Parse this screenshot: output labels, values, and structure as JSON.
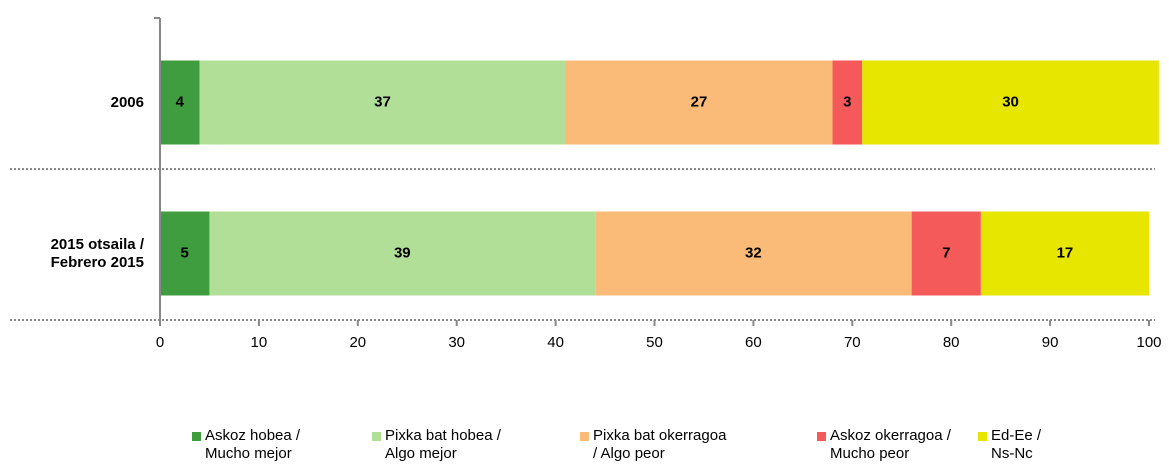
{
  "chart_data": {
    "type": "stacked_bar_horizontal",
    "categories": [
      "2006",
      "2015 otsaila / Febrero 2015"
    ],
    "series": [
      {
        "name": "Askoz hobea / Mucho mejor",
        "color": "#3f9d3f",
        "values": [
          4,
          5
        ]
      },
      {
        "name": "Pixka bat hobea / Algo mejor",
        "color": "#b2df98",
        "values": [
          37,
          39
        ]
      },
      {
        "name": "Pixka bat okerragoa / Algo peor",
        "color": "#fbbb78",
        "values": [
          27,
          32
        ]
      },
      {
        "name": "Askoz okerragoa / Mucho peor",
        "color": "#f45a5a",
        "values": [
          3,
          7
        ]
      },
      {
        "name": "Ed-Ee / Ns-Nc",
        "color": "#e6e600",
        "values": [
          30,
          17
        ]
      }
    ],
    "xlim": [
      0,
      100
    ],
    "xticks": [
      0,
      10,
      20,
      30,
      40,
      50,
      60,
      70,
      80,
      90,
      100
    ],
    "legend": "bottom"
  }
}
